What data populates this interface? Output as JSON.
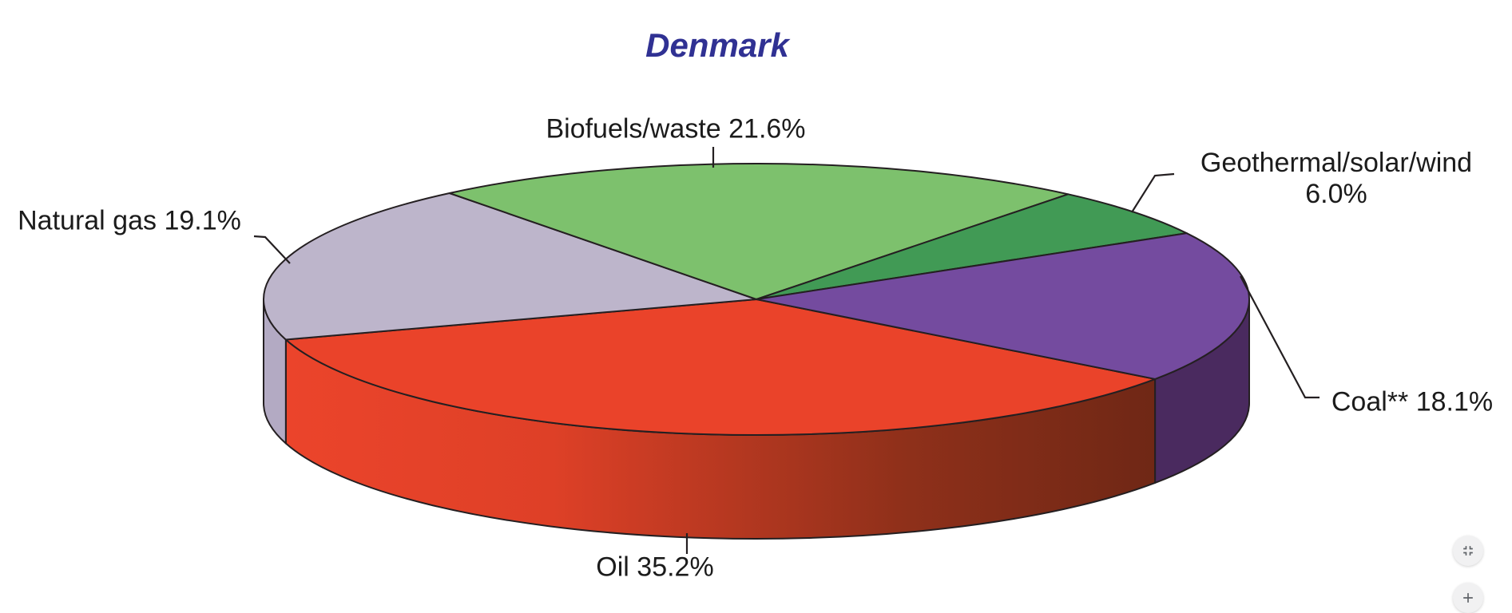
{
  "chart_data": {
    "type": "pie",
    "style": "3d",
    "title": "Denmark",
    "unit": "%",
    "slices": [
      {
        "id": "oil",
        "label": "Oil",
        "value": 35.2,
        "display": "Oil 35.2%",
        "color_top": "#EA432A",
        "side_gradient": [
          {
            "offset": "0%",
            "color": "#EB442B"
          },
          {
            "offset": "30%",
            "color": "#DE4027"
          },
          {
            "offset": "70%",
            "color": "#8F301A"
          },
          {
            "offset": "100%",
            "color": "#6E2715"
          }
        ]
      },
      {
        "id": "natural-gas",
        "label": "Natural gas",
        "value": 19.1,
        "display": "Natural gas 19.1%",
        "color_top": "#BDB5CB",
        "color_side": "#B3AAC3"
      },
      {
        "id": "biofuels-waste",
        "label": "Biofuels/waste",
        "value": 21.6,
        "display": "Biofuels/waste 21.6%",
        "color_top": "#7DC16D",
        "color_side": "#5E9952"
      },
      {
        "id": "geothermal-solar-wind",
        "label": "Geothermal/solar/wind",
        "value": 6.0,
        "display": "Geothermal/solar/wind 6.0%",
        "display_line1": "Geothermal/solar/wind",
        "display_line2": "6.0%",
        "color_top": "#419A55",
        "color_side": "#2F7440"
      },
      {
        "id": "coal",
        "label": "Coal**",
        "value": 18.1,
        "display": "Coal** 18.1%",
        "color_top": "#744B9F",
        "color_side": "#4A2A5F"
      }
    ],
    "layout": {
      "start_angle_deg": 36,
      "clockwise": true,
      "legend": "none",
      "labels": "outside-with-leader-lines",
      "outline_color": "#241F21",
      "title_color": "#303193"
    }
  },
  "controls": {
    "fit_icon": "fullscreen-exit-icon",
    "zoom_in_icon": "plus-icon"
  }
}
